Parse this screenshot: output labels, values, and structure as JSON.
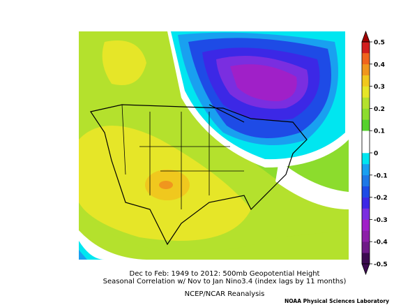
{
  "map": {
    "caption": [
      "Dec to Feb: 1949 to 2012: 500mb Geopotential Height",
      "Seasonal Correlation w/ Nov to Jan Nino3.4 (index lags by 11 months)",
      "NCEP/NCAR Reanalysis"
    ],
    "credit": "NOAA Physical Sciences Laboratory"
  },
  "colorbar": {
    "lim": [
      -0.5,
      0.5
    ],
    "ticks": [
      0.5,
      0.4,
      0.3,
      0.2,
      0.1,
      0,
      -0.1,
      -0.2,
      -0.3,
      -0.4,
      -0.5
    ],
    "over_color": "#a00000",
    "under_color": "#3c0a50",
    "colors": [
      "#3c0a50",
      "#6e1a87",
      "#8c1fa8",
      "#a020c8",
      "#7a2ee0",
      "#3c28e6",
      "#1e4be6",
      "#1e78e6",
      "#19a0f0",
      "#00e6f0",
      "#ffffff",
      "#ffffff",
      "#55d22d",
      "#8cdc2d",
      "#b4e12d",
      "#e6e628",
      "#f0c81e",
      "#f0961e",
      "#f0641e",
      "#d21e1e"
    ]
  }
}
